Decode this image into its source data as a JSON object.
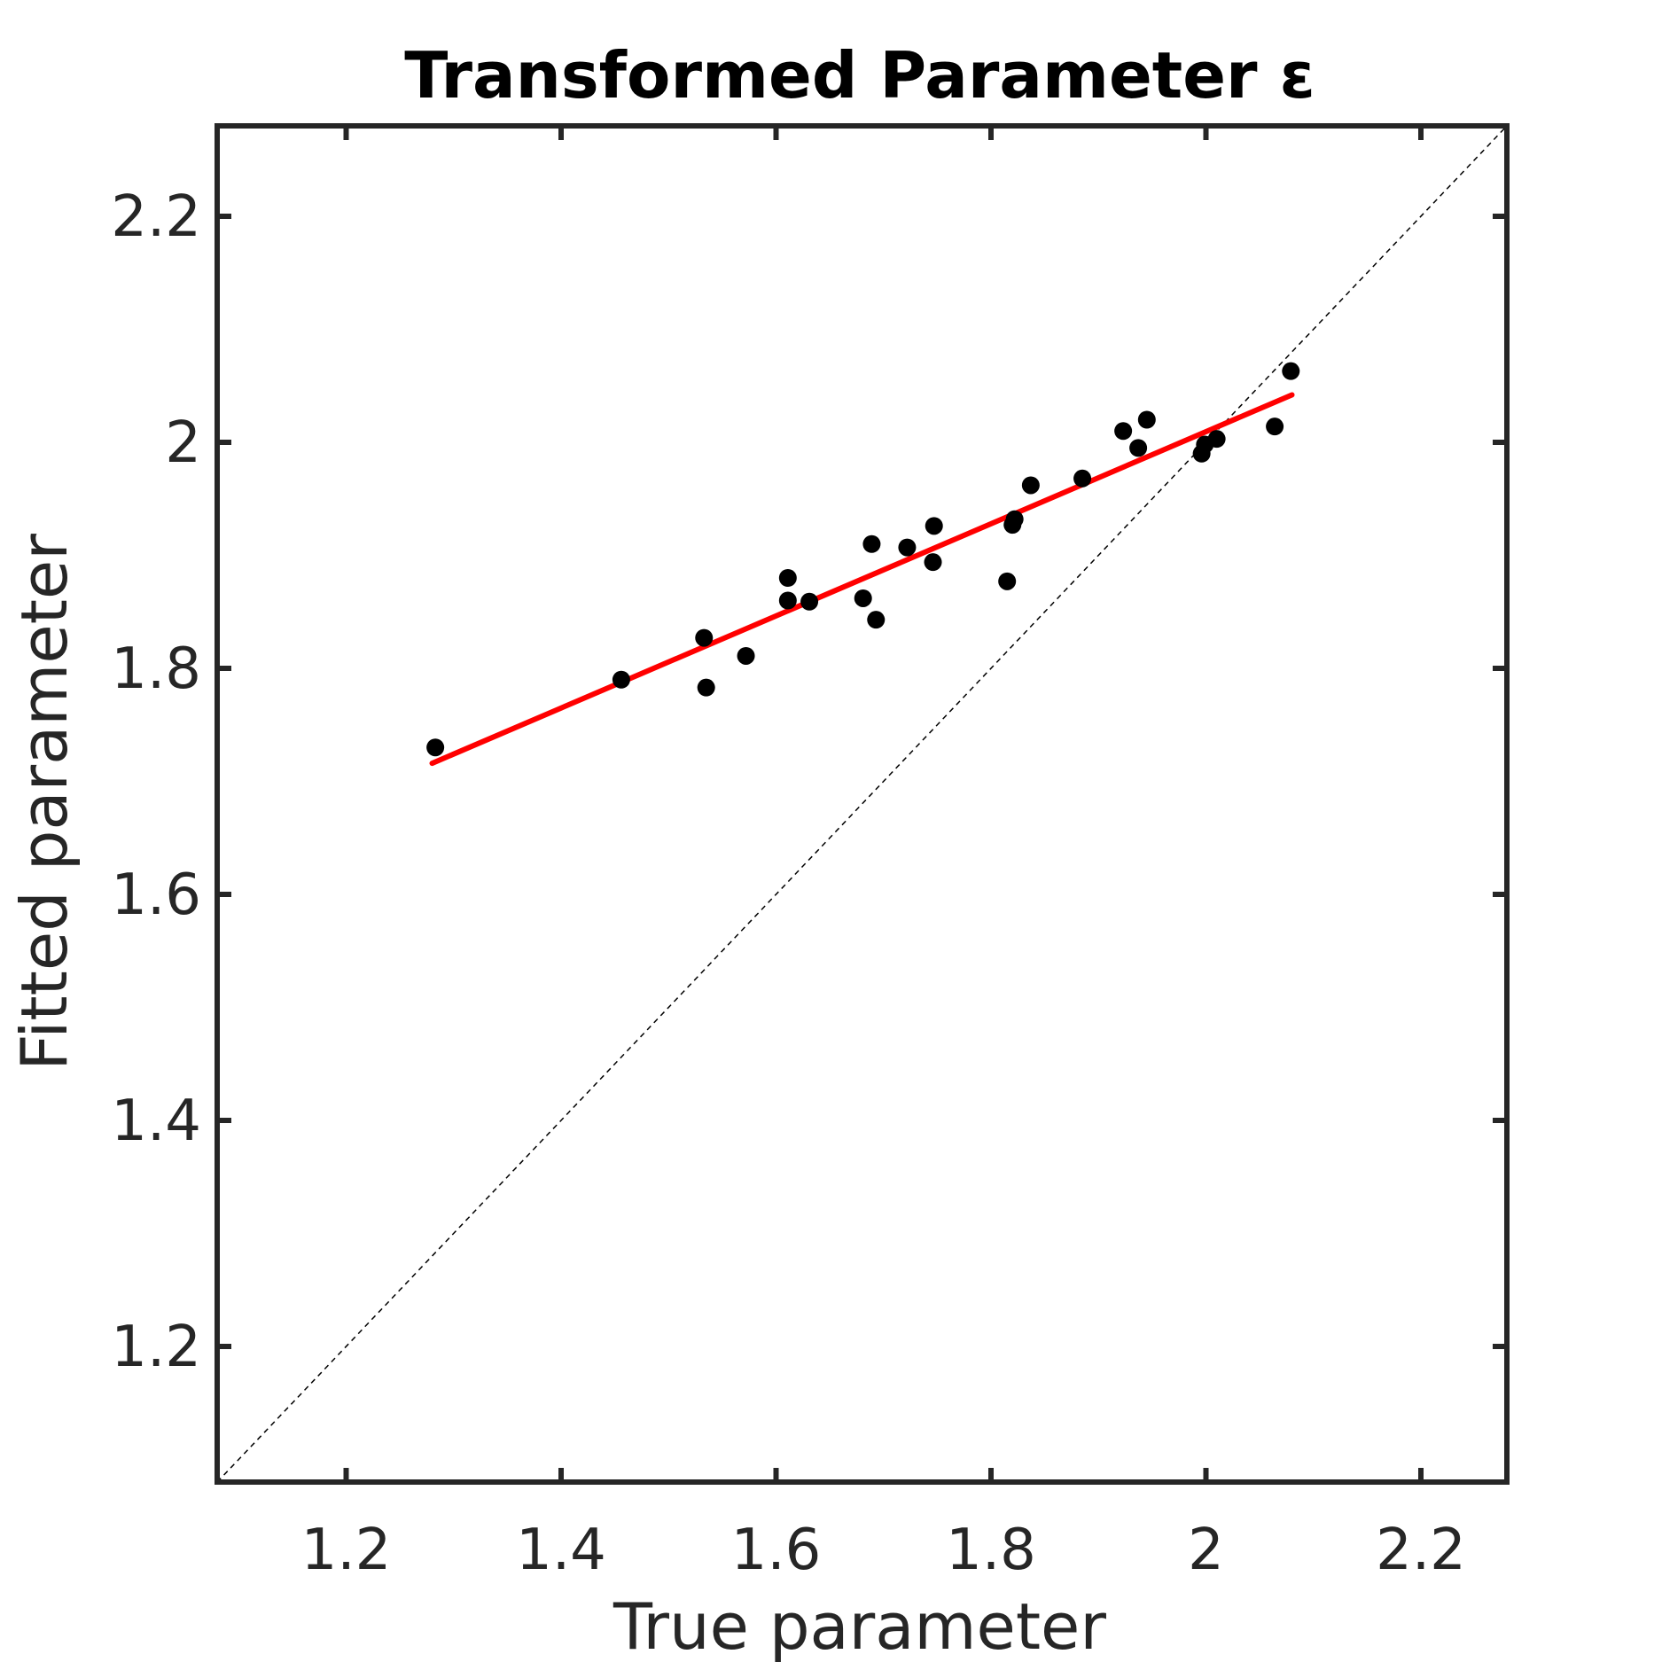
{
  "chart_data": {
    "type": "scatter",
    "title": "Transformed Parameter ε",
    "xlabel": "True parameter",
    "ylabel": "Fitted parameter",
    "xlim": [
      1.08,
      2.28
    ],
    "ylim": [
      1.08,
      2.28
    ],
    "xticks": [
      1.2,
      1.4,
      1.6,
      1.8,
      2,
      2.2
    ],
    "yticks": [
      1.2,
      1.4,
      1.6,
      1.8,
      2,
      2.2
    ],
    "xtick_labels": [
      "1.2",
      "1.4",
      "1.6",
      "1.8",
      "2",
      "2.2"
    ],
    "ytick_labels": [
      "1.2",
      "1.4",
      "1.6",
      "1.8",
      "2",
      "2.2"
    ],
    "grid": false,
    "legend": false,
    "colors": {
      "points": "#000000",
      "fit_line": "#ff0000",
      "identity_line": "#000000",
      "axes": "#262626"
    },
    "points": [
      {
        "x": 1.283,
        "y": 1.73
      },
      {
        "x": 1.456,
        "y": 1.79
      },
      {
        "x": 1.533,
        "y": 1.827
      },
      {
        "x": 1.535,
        "y": 1.783
      },
      {
        "x": 1.572,
        "y": 1.811
      },
      {
        "x": 1.611,
        "y": 1.88
      },
      {
        "x": 1.611,
        "y": 1.86
      },
      {
        "x": 1.631,
        "y": 1.859
      },
      {
        "x": 1.681,
        "y": 1.862
      },
      {
        "x": 1.689,
        "y": 1.91
      },
      {
        "x": 1.693,
        "y": 1.843
      },
      {
        "x": 1.722,
        "y": 1.907
      },
      {
        "x": 1.747,
        "y": 1.926
      },
      {
        "x": 1.746,
        "y": 1.894
      },
      {
        "x": 1.815,
        "y": 1.877
      },
      {
        "x": 1.82,
        "y": 1.927
      },
      {
        "x": 1.822,
        "y": 1.932
      },
      {
        "x": 1.837,
        "y": 1.962
      },
      {
        "x": 1.885,
        "y": 1.968
      },
      {
        "x": 1.923,
        "y": 2.01
      },
      {
        "x": 1.937,
        "y": 1.995
      },
      {
        "x": 1.945,
        "y": 2.02
      },
      {
        "x": 1.996,
        "y": 1.99
      },
      {
        "x": 1.999,
        "y": 1.998
      },
      {
        "x": 2.01,
        "y": 2.003
      },
      {
        "x": 2.064,
        "y": 2.014
      },
      {
        "x": 2.079,
        "y": 2.063
      }
    ],
    "fit_line": {
      "x": [
        1.28,
        2.08
      ],
      "y": [
        1.716,
        2.042
      ]
    },
    "identity_line": {
      "x": [
        1.08,
        2.28
      ],
      "y": [
        1.08,
        2.28
      ]
    }
  }
}
